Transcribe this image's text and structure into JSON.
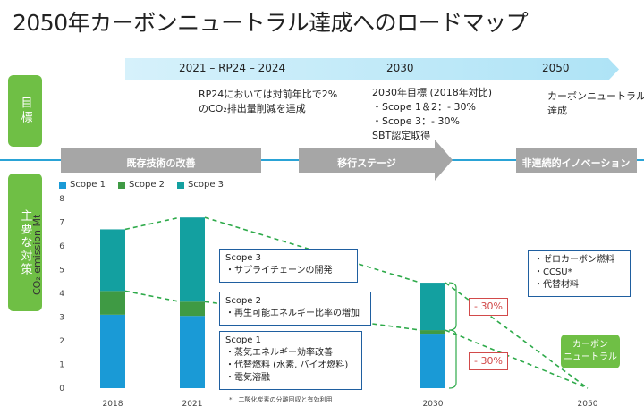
{
  "title": "2050年カーボンニュートラル達成へのロードマップ",
  "timeline": {
    "labels": [
      "2021 – RP24 – 2024",
      "2030",
      "2050"
    ]
  },
  "side": {
    "goal": "目標",
    "measures": "主要な対策"
  },
  "goals": {
    "g1": [
      "RP24においては対前年比で2%",
      "のCO₂排出量削減を達成"
    ],
    "g2": [
      "2030年目標 (2018年対比)",
      "・Scope 1＆2：- 30%",
      "・Scope 3：- 30%",
      "SBT認定取得"
    ],
    "g3": [
      "カーボンニュートラル",
      "達成"
    ]
  },
  "stages": [
    "既存技術の改善",
    "移行ステージ",
    "非連続的イノベーション"
  ],
  "chart_data": {
    "type": "bar",
    "stacked": true,
    "categories": [
      "2018",
      "2021",
      "2030",
      "2050"
    ],
    "series": [
      {
        "name": "Scope 1",
        "color": "#1a9ad6",
        "values": [
          3.1,
          3.05,
          2.3,
          0
        ]
      },
      {
        "name": "Scope 2",
        "color": "#3f9a44",
        "values": [
          1.0,
          0.6,
          0.15,
          0
        ]
      },
      {
        "name": "Scope 3",
        "color": "#13a0a0",
        "values": [
          2.6,
          3.55,
          2.0,
          0
        ]
      }
    ],
    "ylabel": "CO₂ emission Mt",
    "ylim": [
      0,
      8
    ],
    "yticks": [
      "0",
      "1",
      "2",
      "3",
      "4",
      "5",
      "6",
      "7",
      "8"
    ],
    "grid": false,
    "legend": "top-left"
  },
  "boxes": {
    "scope3": [
      "Scope 3",
      "・サプライチェーンの開発"
    ],
    "scope2": [
      "Scope 2",
      "・再生可能エネルギー比率の増加"
    ],
    "scope1": [
      "Scope 1",
      "・蒸気エネルギー効率改善",
      "・代替燃料 (水素, バイオ燃料)",
      "・電気溶融"
    ],
    "innov": [
      "・ゼロカーボン燃料",
      "・CCSU*",
      "・代替材料"
    ],
    "pct1": "- 30%",
    "pct2": "- 30%",
    "carbon_neutral": [
      "カーボン",
      "ニュートラル"
    ]
  },
  "footnote": "*　二酸化炭素の分離回収と有効利用"
}
